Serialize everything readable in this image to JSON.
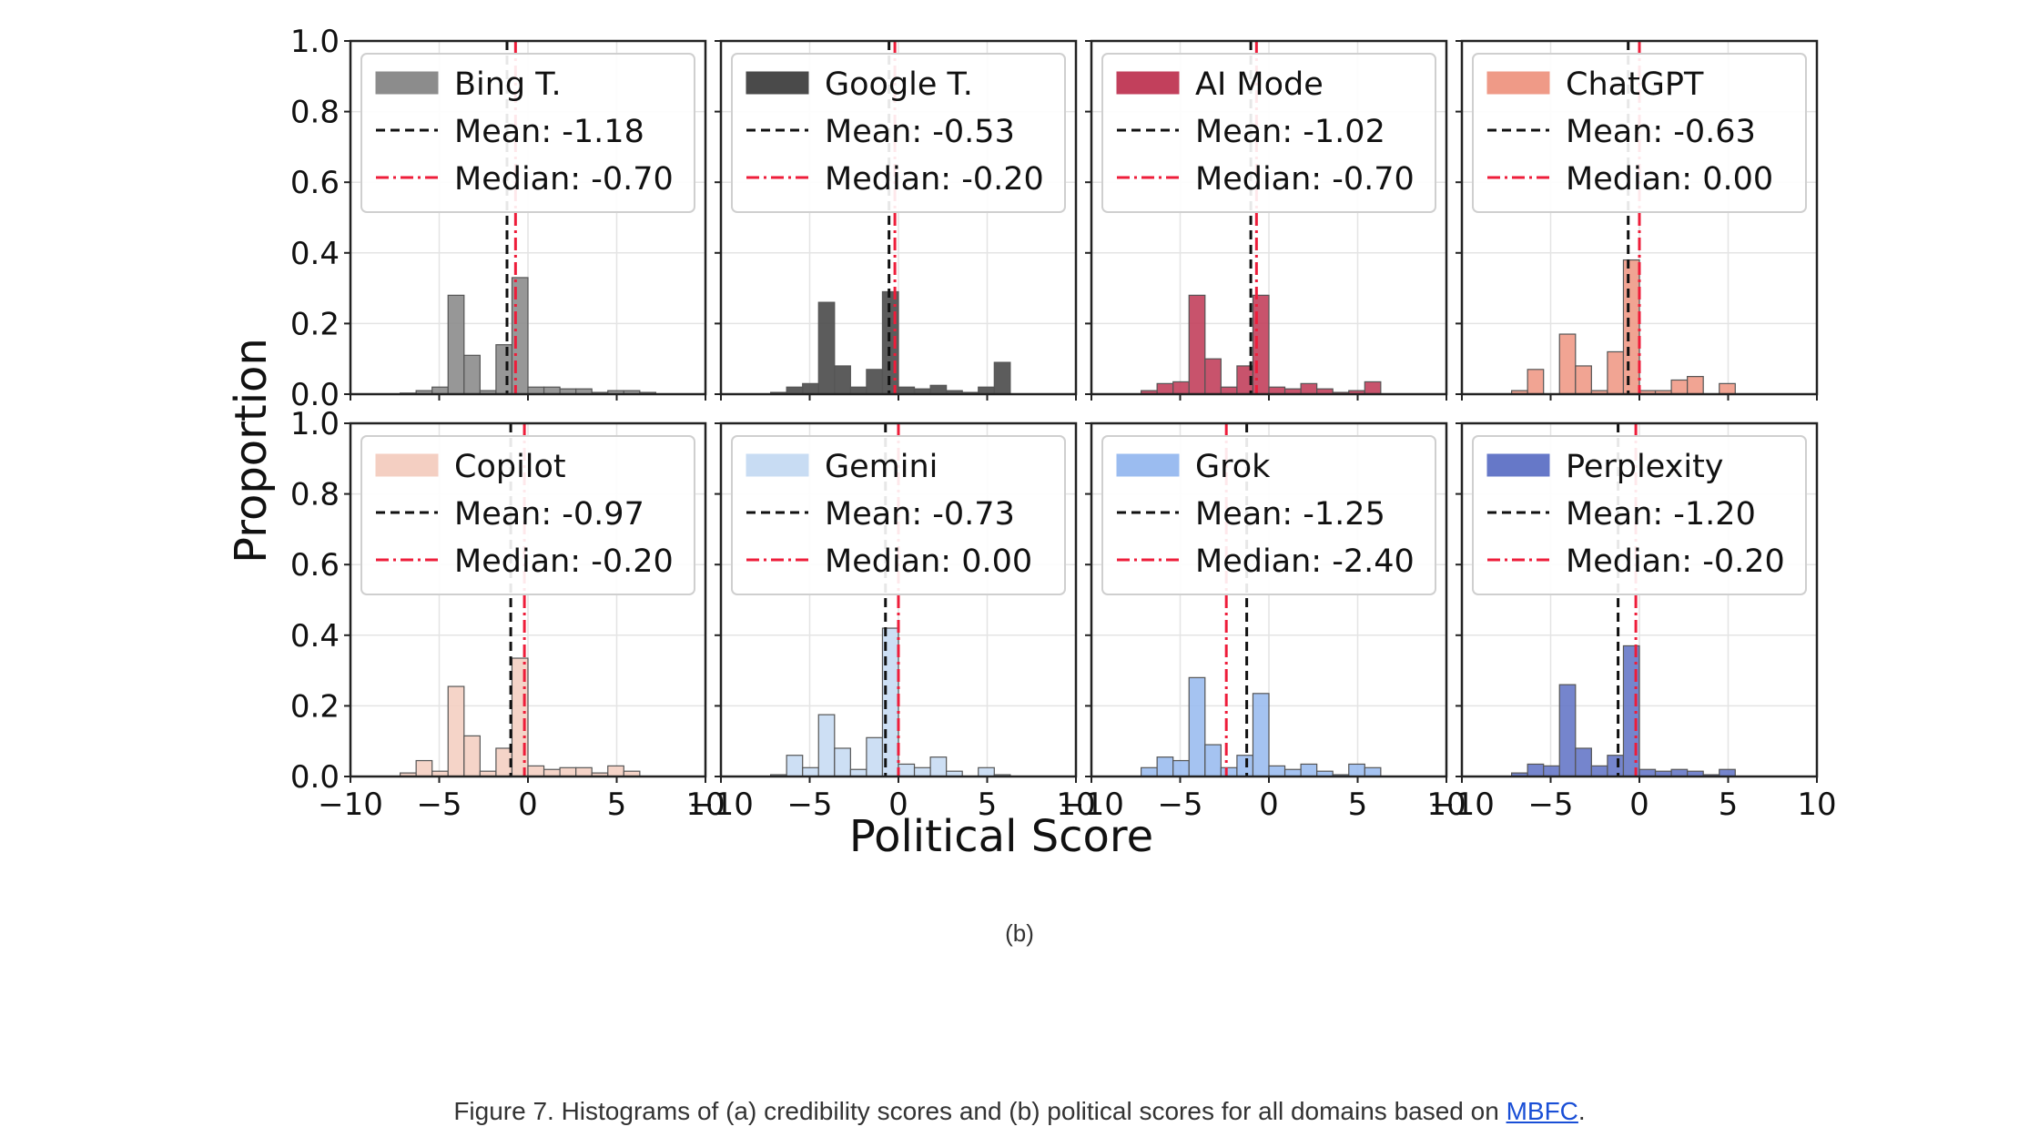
{
  "chart_data": {
    "type": "bar",
    "layout": "2x4 grid of histograms",
    "xlabel": "Political Score",
    "ylabel": "Proportion",
    "xlim": [
      -10,
      10
    ],
    "ylim": [
      0,
      1.0
    ],
    "xticks": [
      -10,
      -5,
      0,
      5,
      10
    ],
    "yticks": [
      0.0,
      0.2,
      0.4,
      0.6,
      0.8,
      1.0
    ],
    "bin_width": 0.9,
    "bin_start": -7.2,
    "legend_labels": {
      "mean": "Mean",
      "median": "Median"
    },
    "panels": [
      {
        "name": "Bing T.",
        "color": "#8c8c8c",
        "mean": -1.18,
        "median": -0.7,
        "mean_label": "Mean: -1.18",
        "median_label": "Median: -0.70",
        "values": [
          0.003,
          0.01,
          0.02,
          0.28,
          0.11,
          0.01,
          0.14,
          0.33,
          0.02,
          0.02,
          0.015,
          0.015,
          0.005,
          0.01,
          0.01,
          0.005
        ]
      },
      {
        "name": "Google T.",
        "color": "#4a4a4a",
        "mean": -0.53,
        "median": -0.2,
        "mean_label": "Mean: -0.53",
        "median_label": "Median: -0.20",
        "values": [
          0.005,
          0.02,
          0.03,
          0.26,
          0.08,
          0.02,
          0.07,
          0.29,
          0.02,
          0.015,
          0.025,
          0.01,
          0.005,
          0.02,
          0.09,
          0.0
        ]
      },
      {
        "name": "AI Mode",
        "color": "#c2405c",
        "mean": -1.02,
        "median": -0.7,
        "mean_label": "Mean: -1.02",
        "median_label": "Median: -0.70",
        "values": [
          0.01,
          0.03,
          0.035,
          0.28,
          0.1,
          0.02,
          0.08,
          0.28,
          0.02,
          0.015,
          0.03,
          0.015,
          0.005,
          0.01,
          0.035,
          0.0
        ]
      },
      {
        "name": "ChatGPT",
        "color": "#ef9a87",
        "mean": -0.63,
        "median": 0.0,
        "mean_label": "Mean: -0.63",
        "median_label": "Median: 0.00",
        "values": [
          0.01,
          0.07,
          0.0,
          0.17,
          0.08,
          0.01,
          0.12,
          0.38,
          0.01,
          0.01,
          0.04,
          0.05,
          0.0,
          0.03,
          0.0,
          0.0
        ]
      },
      {
        "name": "Copilot",
        "color": "#f4cfc2",
        "mean": -0.97,
        "median": -0.2,
        "mean_label": "Mean: -0.97",
        "median_label": "Median: -0.20",
        "values": [
          0.01,
          0.045,
          0.015,
          0.255,
          0.115,
          0.015,
          0.08,
          0.335,
          0.03,
          0.02,
          0.025,
          0.025,
          0.01,
          0.03,
          0.015,
          0.0
        ]
      },
      {
        "name": "Gemini",
        "color": "#c8dcf3",
        "mean": -0.73,
        "median": 0.0,
        "mean_label": "Mean: -0.73",
        "median_label": "Median: 0.00",
        "values": [
          0.005,
          0.06,
          0.025,
          0.175,
          0.08,
          0.02,
          0.11,
          0.42,
          0.035,
          0.025,
          0.055,
          0.015,
          0.0,
          0.025,
          0.005,
          0.0
        ]
      },
      {
        "name": "Grok",
        "color": "#9bbcf0",
        "mean": -1.25,
        "median": -2.4,
        "mean_label": "Mean: -1.25",
        "median_label": "Median: -2.40",
        "values": [
          0.025,
          0.055,
          0.045,
          0.28,
          0.09,
          0.025,
          0.06,
          0.235,
          0.03,
          0.02,
          0.035,
          0.015,
          0.005,
          0.035,
          0.025,
          0.0
        ]
      },
      {
        "name": "Perplexity",
        "color": "#6678c8",
        "mean": -1.2,
        "median": -0.2,
        "mean_label": "Mean: -1.20",
        "median_label": "Median: -0.20",
        "values": [
          0.01,
          0.035,
          0.03,
          0.26,
          0.08,
          0.03,
          0.06,
          0.37,
          0.02,
          0.015,
          0.02,
          0.015,
          0.005,
          0.02,
          0.0,
          0.0
        ]
      }
    ]
  },
  "subcaption": "(b)",
  "caption": {
    "text": "Figure 7. Histograms of (a) credibility scores and (b) political scores for all domains based on ",
    "link": "MBFC",
    "end": "."
  }
}
